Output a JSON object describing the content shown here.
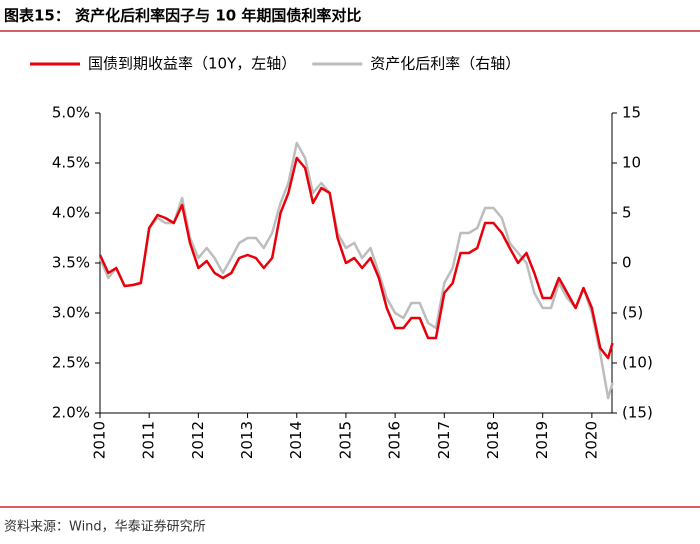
{
  "chart_data": {
    "type": "line",
    "title": "图表15：  资产化后利率因子与 10 年期国债利率对比",
    "source": "资料来源：Wind，华泰证券研究所",
    "x": [
      2010.0,
      2010.17,
      2010.33,
      2010.5,
      2010.67,
      2010.83,
      2011.0,
      2011.17,
      2011.33,
      2011.5,
      2011.67,
      2011.83,
      2012.0,
      2012.17,
      2012.33,
      2012.5,
      2012.67,
      2012.83,
      2013.0,
      2013.17,
      2013.33,
      2013.5,
      2013.67,
      2013.83,
      2014.0,
      2014.17,
      2014.33,
      2014.5,
      2014.67,
      2014.83,
      2015.0,
      2015.17,
      2015.33,
      2015.5,
      2015.67,
      2015.83,
      2016.0,
      2016.17,
      2016.33,
      2016.5,
      2016.67,
      2016.83,
      2017.0,
      2017.17,
      2017.33,
      2017.5,
      2017.67,
      2017.83,
      2018.0,
      2018.17,
      2018.33,
      2018.5,
      2018.67,
      2018.83,
      2019.0,
      2019.17,
      2019.33,
      2019.5,
      2019.67,
      2019.83,
      2020.0,
      2020.17,
      2020.33,
      2020.42
    ],
    "series": [
      {
        "name": "国债到期收益率（10Y，左轴）",
        "color": "#e8000b",
        "axis": "y",
        "values": [
          3.58,
          3.4,
          3.45,
          3.27,
          3.28,
          3.3,
          3.85,
          3.98,
          3.95,
          3.9,
          4.08,
          3.7,
          3.45,
          3.52,
          3.4,
          3.35,
          3.4,
          3.55,
          3.58,
          3.55,
          3.45,
          3.55,
          4.0,
          4.2,
          4.55,
          4.45,
          4.1,
          4.25,
          4.2,
          3.75,
          3.5,
          3.55,
          3.45,
          3.55,
          3.35,
          3.05,
          2.85,
          2.85,
          2.95,
          2.95,
          2.75,
          2.75,
          3.2,
          3.3,
          3.6,
          3.6,
          3.65,
          3.9,
          3.9,
          3.8,
          3.65,
          3.5,
          3.6,
          3.4,
          3.15,
          3.15,
          3.35,
          3.2,
          3.05,
          3.25,
          3.05,
          2.65,
          2.55,
          2.7
        ]
      },
      {
        "name": "资产化后利率（右轴）",
        "color": "#bdbdbd",
        "axis": "y2",
        "values": [
          0.5,
          -1.5,
          -0.5,
          -2.3,
          -2.2,
          -2.0,
          3.5,
          4.5,
          4.0,
          4.0,
          6.5,
          2.5,
          0.5,
          1.5,
          0.5,
          -1.0,
          0.5,
          2.0,
          2.5,
          2.5,
          1.5,
          3.0,
          6.0,
          8.0,
          12.0,
          10.5,
          7.0,
          8.0,
          7.0,
          3.0,
          1.5,
          2.0,
          0.5,
          1.5,
          -1.0,
          -3.5,
          -5.0,
          -5.5,
          -4.0,
          -4.0,
          -6.0,
          -6.5,
          -2.0,
          -0.5,
          3.0,
          3.0,
          3.5,
          5.5,
          5.5,
          4.5,
          2.0,
          1.0,
          0.0,
          -3.0,
          -4.5,
          -4.5,
          -2.0,
          -3.5,
          -4.5,
          -2.5,
          -5.0,
          -9.0,
          -13.5,
          -12.0
        ]
      }
    ],
    "xlim": [
      2010,
      2020.45
    ],
    "xticks": [
      2010,
      2011,
      2012,
      2013,
      2014,
      2015,
      2016,
      2017,
      2018,
      2019,
      2020
    ],
    "ylim": [
      2.0,
      5.0
    ],
    "yticks": [
      {
        "value": 2.0,
        "label": "2.0%"
      },
      {
        "value": 2.5,
        "label": "2.5%"
      },
      {
        "value": 3.0,
        "label": "3.0%"
      },
      {
        "value": 3.5,
        "label": "3.5%"
      },
      {
        "value": 4.0,
        "label": "4.0%"
      },
      {
        "value": 4.5,
        "label": "4.5%"
      },
      {
        "value": 5.0,
        "label": "5.0%"
      }
    ],
    "y2lim": [
      -15,
      15
    ],
    "y2ticks": [
      {
        "value": -15,
        "label": "(15)"
      },
      {
        "value": -10,
        "label": "(10)"
      },
      {
        "value": -5,
        "label": "(5)"
      },
      0,
      5,
      10,
      15
    ],
    "legend": "top"
  }
}
